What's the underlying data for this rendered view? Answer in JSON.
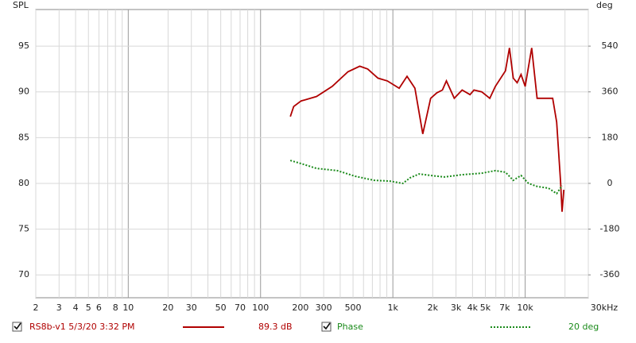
{
  "chart_data": {
    "type": "line",
    "log_x": true,
    "grid": true,
    "y_label": "SPL",
    "y2_label": "deg",
    "xlim": [
      2,
      30000
    ],
    "ylim": [
      67.5,
      99
    ],
    "y2lim": [
      -450,
      684
    ],
    "xticks": [
      2,
      3,
      4,
      5,
      6,
      8,
      10,
      20,
      30,
      50,
      70,
      100,
      200,
      300,
      500,
      {
        "value": 1000,
        "label": "1k"
      },
      {
        "value": 2000,
        "label": "2k"
      },
      {
        "value": 3000,
        "label": "3k"
      },
      {
        "value": 4000,
        "label": "4k"
      },
      {
        "value": 5000,
        "label": "5k"
      },
      {
        "value": 7000,
        "label": "7k"
      },
      {
        "value": 10000,
        "label": "10k"
      },
      {
        "value": 30000,
        "label": "30kHz"
      }
    ],
    "x_minor_ticks": [
      7,
      9,
      40,
      60,
      80,
      90,
      400,
      600,
      700,
      800,
      900,
      6000,
      8000,
      9000,
      20000
    ],
    "yticks": [
      70,
      75,
      80,
      85,
      90,
      95
    ],
    "y2ticks": [
      -360,
      -180,
      0,
      180,
      360,
      540
    ],
    "series": [
      {
        "name": "RS8b-v1 5/3/20 3:32 PM",
        "readout": "89.3 dB",
        "color": "#b00000",
        "dash": false,
        "x": [
          168,
          178,
          202,
          265,
          348,
          458,
          562,
          645,
          771,
          908,
          1116,
          1280,
          1467,
          1683,
          1930,
          2150,
          2370,
          2540,
          2910,
          3340,
          3830,
          4100,
          4700,
          5400,
          5950,
          7100,
          7600,
          8130,
          8700,
          9300,
          10000,
          11200,
          12300,
          14100,
          16150,
          17300,
          18500,
          19000,
          19600
        ],
        "values": [
          87.3,
          88.4,
          89.0,
          89.5,
          90.6,
          92.2,
          92.8,
          92.5,
          91.5,
          91.2,
          90.4,
          91.7,
          90.4,
          85.4,
          89.3,
          89.9,
          90.2,
          91.2,
          89.3,
          90.2,
          89.7,
          90.2,
          90.0,
          89.3,
          90.6,
          92.3,
          94.8,
          91.5,
          91.0,
          91.9,
          90.6,
          94.8,
          89.3,
          89.3,
          89.3,
          86.7,
          80.2,
          76.9,
          79.3
        ]
      },
      {
        "name": "Phase",
        "readout": "20 deg",
        "color": "#1a8a1a",
        "dash": true,
        "axis": "y2",
        "x": [
          168,
          202,
          265,
          380,
          520,
          720,
          950,
          1190,
          1350,
          1580,
          1930,
          2450,
          3300,
          4720,
          5950,
          7100,
          8130,
          9300,
          10600,
          12300,
          15000,
          17300,
          19000
        ],
        "values": [
          90,
          78,
          59,
          50,
          28,
          12,
          9,
          0,
          22,
          37,
          31,
          25,
          34,
          40,
          50,
          44,
          12,
          31,
          0,
          -12,
          -19,
          -40,
          -9
        ]
      }
    ]
  }
}
